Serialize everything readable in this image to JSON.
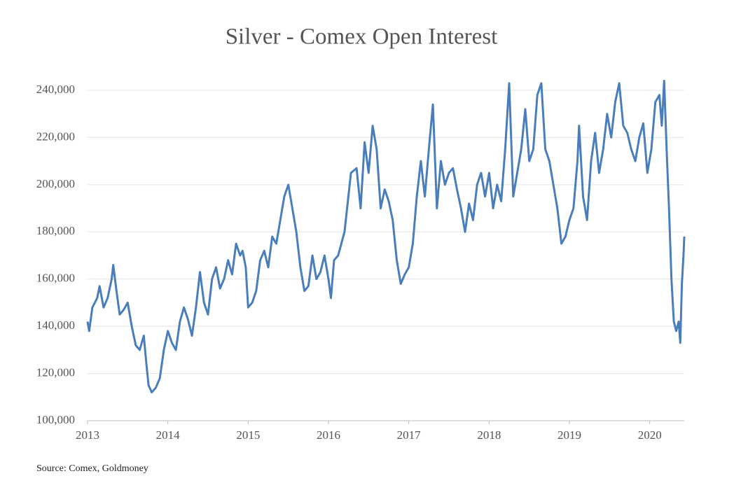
{
  "chart_data": {
    "type": "line",
    "title": "Silver - Comex Open Interest",
    "source": "Source: Comex, Goldmoney",
    "xlim": [
      2013,
      2020.43
    ],
    "xticks": [
      2013,
      2014,
      2015,
      2016,
      2017,
      2018,
      2019,
      2020
    ],
    "ylim": [
      100000,
      240000
    ],
    "yticks": [
      {
        "value": 100000,
        "label": "100,000"
      },
      {
        "value": 120000,
        "label": "120,000"
      },
      {
        "value": 140000,
        "label": "140,000"
      },
      {
        "value": 160000,
        "label": "160,000"
      },
      {
        "value": 180000,
        "label": "180,000"
      },
      {
        "value": 200000,
        "label": "200,000"
      },
      {
        "value": 220000,
        "label": "220,000"
      },
      {
        "value": 240000,
        "label": "240,000"
      }
    ],
    "grid": true,
    "x": [
      2013.0,
      2013.02,
      2013.06,
      2013.12,
      2013.15,
      2013.2,
      2013.25,
      2013.3,
      2013.32,
      2013.36,
      2013.4,
      2013.45,
      2013.5,
      2013.55,
      2013.6,
      2013.65,
      2013.7,
      2013.73,
      2013.76,
      2013.8,
      2013.85,
      2013.9,
      2013.95,
      2014.0,
      2014.05,
      2014.1,
      2014.15,
      2014.2,
      2014.25,
      2014.3,
      2014.35,
      2014.4,
      2014.45,
      2014.5,
      2014.55,
      2014.6,
      2014.65,
      2014.7,
      2014.75,
      2014.8,
      2014.85,
      2014.9,
      2014.93,
      2014.97,
      2015.0,
      2015.05,
      2015.1,
      2015.15,
      2015.2,
      2015.25,
      2015.3,
      2015.35,
      2015.4,
      2015.45,
      2015.5,
      2015.55,
      2015.6,
      2015.65,
      2015.7,
      2015.75,
      2015.8,
      2015.85,
      2015.9,
      2015.95,
      2016.0,
      2016.03,
      2016.07,
      2016.12,
      2016.2,
      2016.28,
      2016.35,
      2016.4,
      2016.45,
      2016.5,
      2016.55,
      2016.6,
      2016.65,
      2016.7,
      2016.75,
      2016.8,
      2016.85,
      2016.9,
      2016.95,
      2017.0,
      2017.05,
      2017.1,
      2017.15,
      2017.2,
      2017.25,
      2017.3,
      2017.35,
      2017.4,
      2017.45,
      2017.5,
      2017.55,
      2017.6,
      2017.65,
      2017.7,
      2017.75,
      2017.8,
      2017.85,
      2017.9,
      2017.95,
      2018.0,
      2018.05,
      2018.1,
      2018.15,
      2018.2,
      2018.25,
      2018.3,
      2018.35,
      2018.4,
      2018.45,
      2018.5,
      2018.55,
      2018.6,
      2018.65,
      2018.7,
      2018.75,
      2018.8,
      2018.85,
      2018.9,
      2018.95,
      2019.0,
      2019.05,
      2019.1,
      2019.12,
      2019.17,
      2019.22,
      2019.27,
      2019.32,
      2019.37,
      2019.42,
      2019.47,
      2019.52,
      2019.57,
      2019.62,
      2019.67,
      2019.72,
      2019.77,
      2019.82,
      2019.87,
      2019.92,
      2019.97,
      2020.02,
      2020.07,
      2020.12,
      2020.15,
      2020.18,
      2020.21,
      2020.24,
      2020.27,
      2020.3,
      2020.33,
      2020.36,
      2020.38,
      2020.4,
      2020.42,
      2020.43
    ],
    "series": [
      {
        "name": "Open Interest",
        "color": "#4a7ebb",
        "values": [
          142000,
          138000,
          148000,
          152000,
          157000,
          148000,
          152000,
          160000,
          166000,
          155000,
          145000,
          147000,
          150000,
          140000,
          132000,
          130000,
          136000,
          125000,
          115000,
          112000,
          114000,
          118000,
          130000,
          138000,
          133000,
          130000,
          142000,
          148000,
          143000,
          136000,
          148000,
          163000,
          150000,
          145000,
          160000,
          165000,
          156000,
          160000,
          168000,
          162000,
          175000,
          170000,
          172000,
          165000,
          148000,
          150000,
          155000,
          168000,
          172000,
          165000,
          178000,
          175000,
          185000,
          195000,
          200000,
          190000,
          180000,
          165000,
          155000,
          157000,
          170000,
          160000,
          163000,
          170000,
          160000,
          152000,
          168000,
          170000,
          180000,
          205000,
          207000,
          190000,
          218000,
          205000,
          225000,
          215000,
          190000,
          198000,
          193000,
          185000,
          168000,
          158000,
          162000,
          165000,
          175000,
          195000,
          210000,
          195000,
          215000,
          234000,
          190000,
          210000,
          200000,
          205000,
          207000,
          198000,
          190000,
          180000,
          192000,
          185000,
          200000,
          205000,
          195000,
          205000,
          190000,
          200000,
          193000,
          215000,
          243000,
          195000,
          205000,
          215000,
          232000,
          210000,
          215000,
          238000,
          243000,
          215000,
          210000,
          200000,
          190000,
          175000,
          178000,
          185000,
          190000,
          210000,
          225000,
          195000,
          185000,
          210000,
          222000,
          205000,
          215000,
          230000,
          220000,
          235000,
          243000,
          225000,
          222000,
          215000,
          210000,
          220000,
          226000,
          205000,
          215000,
          235000,
          238000,
          225000,
          244000,
          215000,
          190000,
          160000,
          142000,
          138000,
          142000,
          133000,
          158000,
          170000,
          178000
        ]
      }
    ]
  }
}
